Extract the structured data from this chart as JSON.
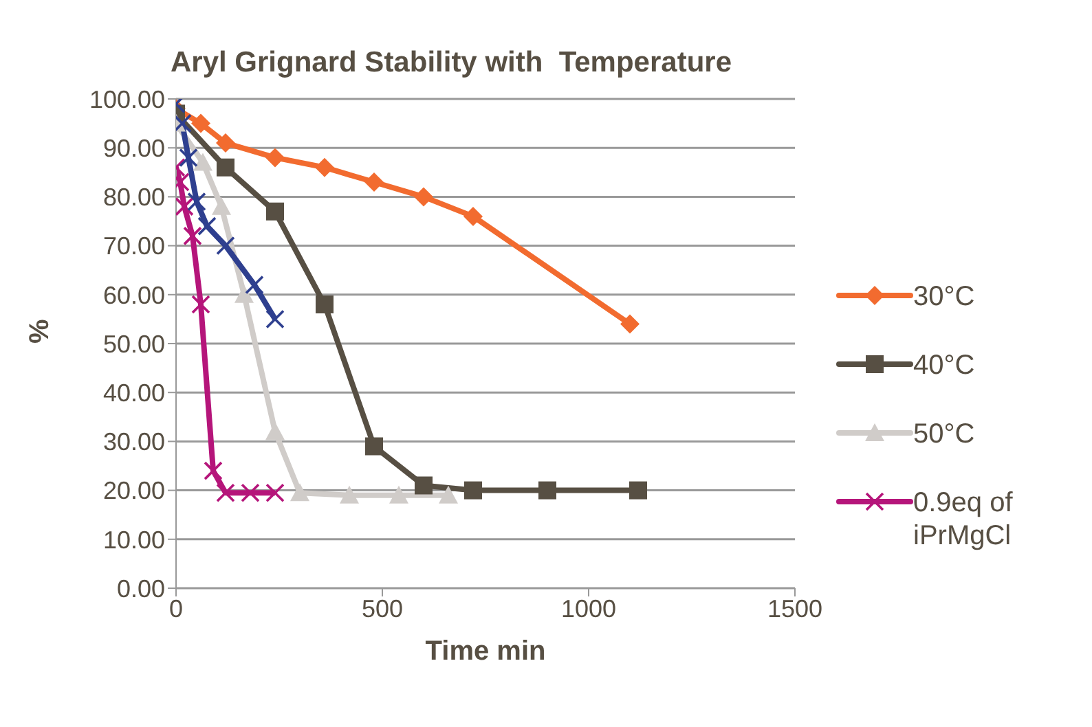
{
  "chart_data": {
    "type": "line",
    "title": "Aryl Grignard Stability with  Temperature",
    "xlabel": "Time min",
    "ylabel": "%",
    "xlim": [
      0,
      1500
    ],
    "xticks": [
      0,
      500,
      1000,
      1500
    ],
    "ylim": [
      0,
      100
    ],
    "yticks": [
      {
        "value": 0,
        "label": "0.00"
      },
      {
        "value": 10,
        "label": "10.00"
      },
      {
        "value": 20,
        "label": "20.00"
      },
      {
        "value": 30,
        "label": "30.00"
      },
      {
        "value": 40,
        "label": "40.00"
      },
      {
        "value": 50,
        "label": "50.00"
      },
      {
        "value": 60,
        "label": "60.00"
      },
      {
        "value": 70,
        "label": "70.00"
      },
      {
        "value": 80,
        "label": "80.00"
      },
      {
        "value": 90,
        "label": "90.00"
      },
      {
        "value": 100,
        "label": "100.00"
      }
    ],
    "grid": "y",
    "legend": "right",
    "line_style": "solid",
    "series": [
      {
        "name": "30°C",
        "color": "#f26b2f",
        "marker": "diamond",
        "x": [
          0,
          60,
          120,
          240,
          360,
          480,
          600,
          720,
          1100
        ],
        "values": [
          98,
          95,
          91,
          88,
          86,
          83,
          80,
          76,
          54
        ]
      },
      {
        "name": "40°C",
        "color": "#574f43",
        "marker": "square",
        "x": [
          0,
          120,
          240,
          360,
          480,
          600,
          720,
          900,
          1120
        ],
        "values": [
          97,
          86,
          77,
          58,
          29,
          21,
          20,
          20,
          20
        ]
      },
      {
        "name": "50°C",
        "color": "#d0ccc9",
        "marker": "triangle",
        "x": [
          0,
          65,
          110,
          165,
          240,
          300,
          420,
          540,
          660
        ],
        "values": [
          95,
          87,
          78,
          60,
          32,
          19.5,
          19,
          19,
          19
        ]
      },
      {
        "name": "0.9eq of iPrMgCl",
        "color": "#b5157a",
        "marker": "cross",
        "x": [
          0,
          10,
          20,
          40,
          60,
          90,
          120,
          180,
          240
        ],
        "values": [
          86,
          83,
          78,
          72,
          58,
          24,
          19.5,
          19.5,
          19.5
        ]
      },
      {
        "color": "#2e3f8f",
        "marker": "cross",
        "x": [
          0,
          15,
          30,
          50,
          75,
          120,
          190,
          240
        ],
        "values": [
          99,
          95,
          88,
          79,
          74,
          70,
          62,
          55
        ]
      }
    ]
  }
}
